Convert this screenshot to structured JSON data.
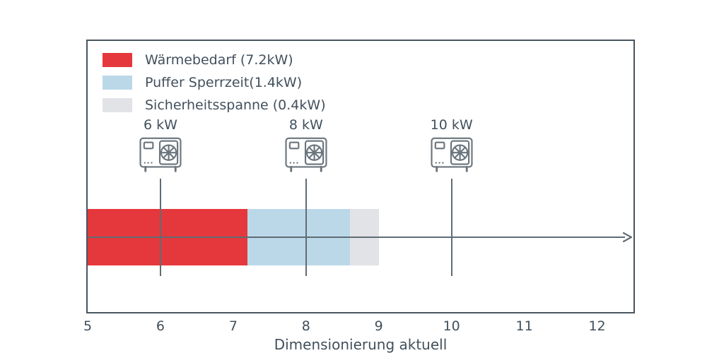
{
  "chart_data": {
    "type": "bar",
    "orientation": "horizontal-stacked",
    "title": "",
    "xlabel": "Dimensionierung aktuell",
    "ylabel": "",
    "xlim": [
      5,
      12.5
    ],
    "x_ticks": [
      "5",
      "6",
      "7",
      "8",
      "9",
      "10",
      "11",
      "12"
    ],
    "grid": false,
    "legend_position": "upper left",
    "bar_start": 5,
    "segments": [
      {
        "name": "waermebedarf",
        "legend_label": "Wärmebedarf (7.2kW)",
        "value_kw": 7.2,
        "bar_end": 7.2,
        "color": "#e5383c"
      },
      {
        "name": "puffer-sperrzeit",
        "legend_label": "Puffer Sperrzeit(1.4kW)",
        "value_kw": 1.4,
        "bar_end": 8.6,
        "color": "#bbd8e9"
      },
      {
        "name": "sicherheitsspanne",
        "legend_label": "Sicherheitsspanne (0.4kW)",
        "value_kw": 0.4,
        "bar_end": 9.0,
        "color": "#e2e3e7"
      }
    ],
    "pump_markers": [
      {
        "label": "6 kW",
        "x": 6
      },
      {
        "label": "8 kW",
        "x": 8
      },
      {
        "label": "10 kW",
        "x": 10
      }
    ],
    "colors": {
      "axis_spine": "#47555f",
      "text": "#42505c",
      "marker_lines": "#606c74",
      "icon_stroke": "#6a747c"
    }
  }
}
